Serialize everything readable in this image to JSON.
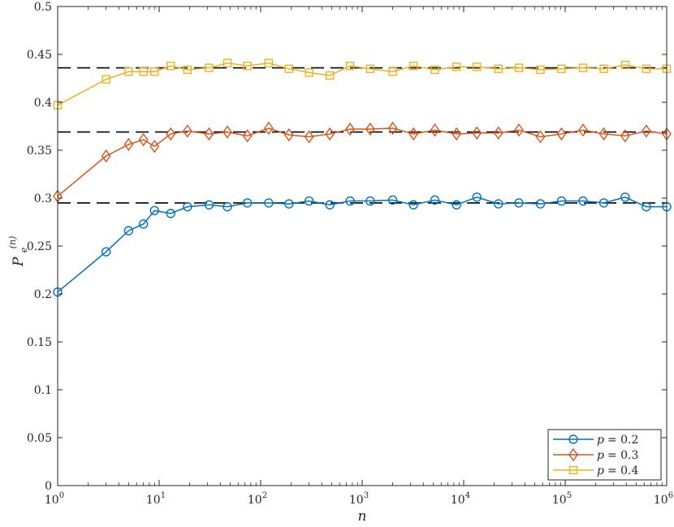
{
  "chart_data": {
    "type": "line",
    "title": "",
    "xlabel": "n",
    "ylabel": "P_e^(n)",
    "ylabel_main": "P",
    "ylabel_sub": "e",
    "ylabel_sup": "(n)",
    "x_scale": "log",
    "xlim": [
      1,
      1000000
    ],
    "ylim": [
      0,
      0.5
    ],
    "grid": false,
    "legend_position": "bottom-right",
    "x_ticks": [
      1,
      10,
      100,
      1000,
      10000,
      100000,
      1000000
    ],
    "x_tick_bases": [
      "10",
      "10",
      "10",
      "10",
      "10",
      "10",
      "10"
    ],
    "x_tick_exps": [
      "0",
      "1",
      "2",
      "3",
      "4",
      "5",
      "6"
    ],
    "y_ticks": [
      0,
      0.05,
      0.1,
      0.15,
      0.2,
      0.25,
      0.3,
      0.35,
      0.4,
      0.45,
      0.5
    ],
    "y_tick_labels": [
      "0",
      "0.05",
      "0.1",
      "0.15",
      "0.2",
      "0.25",
      "0.3",
      "0.35",
      "0.4",
      "0.45",
      "0.5"
    ],
    "x": [
      1,
      3,
      5,
      7,
      9,
      13,
      19,
      31,
      47,
      74,
      120,
      190,
      300,
      480,
      760,
      1200,
      2000,
      3200,
      5200,
      8500,
      13500,
      22000,
      35000,
      57000,
      92000,
      150000,
      240000,
      390000,
      630000,
      1000000
    ],
    "series": [
      {
        "name": "p = 0.2",
        "color": "#0072BD",
        "marker": "circle",
        "values": [
          0.202,
          0.244,
          0.266,
          0.273,
          0.287,
          0.284,
          0.291,
          0.293,
          0.291,
          0.295,
          0.295,
          0.294,
          0.297,
          0.293,
          0.297,
          0.297,
          0.298,
          0.293,
          0.298,
          0.293,
          0.301,
          0.294,
          0.295,
          0.294,
          0.297,
          0.297,
          0.295,
          0.301,
          0.291,
          0.291
        ]
      },
      {
        "name": "p = 0.3",
        "color": "#D95319",
        "marker": "diamond",
        "values": [
          0.302,
          0.344,
          0.356,
          0.361,
          0.354,
          0.367,
          0.37,
          0.367,
          0.369,
          0.365,
          0.373,
          0.366,
          0.364,
          0.367,
          0.372,
          0.372,
          0.373,
          0.367,
          0.371,
          0.367,
          0.368,
          0.368,
          0.371,
          0.364,
          0.367,
          0.371,
          0.367,
          0.365,
          0.37,
          0.367
        ]
      },
      {
        "name": "p = 0.4",
        "color": "#EDB120",
        "marker": "square",
        "values": [
          0.397,
          0.424,
          0.432,
          0.432,
          0.432,
          0.438,
          0.434,
          0.436,
          0.441,
          0.438,
          0.441,
          0.435,
          0.431,
          0.428,
          0.438,
          0.435,
          0.432,
          0.438,
          0.434,
          0.437,
          0.437,
          0.435,
          0.436,
          0.434,
          0.435,
          0.436,
          0.435,
          0.439,
          0.435,
          0.435
        ]
      }
    ],
    "reference_lines": [
      0.295,
      0.369,
      0.436
    ],
    "reference_line_color": "#000000",
    "legend_entries": [
      {
        "name_var": "p",
        "name_value": "= 0.2"
      },
      {
        "name_var": "p",
        "name_value": "= 0.3"
      },
      {
        "name_var": "p",
        "name_value": "= 0.4"
      }
    ]
  }
}
